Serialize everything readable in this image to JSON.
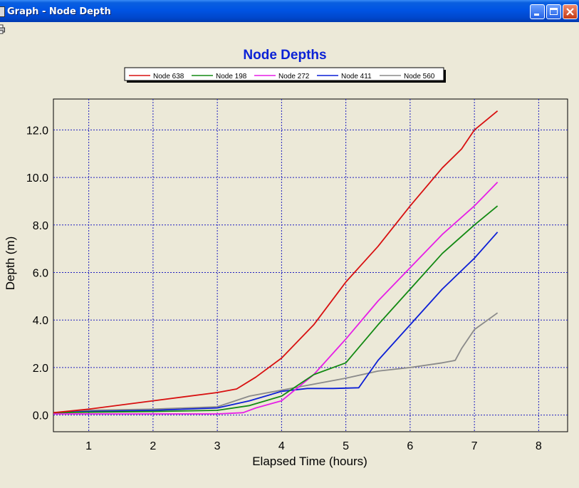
{
  "window": {
    "title": "Graph - Node Depth",
    "buttons": [
      "minimize",
      "maximize",
      "close"
    ],
    "icons": [
      "graph-app-icon",
      "print-icon"
    ]
  },
  "chart_data": {
    "type": "line",
    "title": "Node Depths",
    "xlabel": "Elapsed Time (hours)",
    "ylabel": "Depth (m)",
    "xlim": [
      0.45,
      8.45
    ],
    "ylim": [
      -0.7,
      13.3
    ],
    "x_ticks": [
      1,
      2,
      3,
      4,
      5,
      6,
      7,
      8
    ],
    "y_ticks": [
      0,
      2,
      4,
      6,
      8,
      10,
      12
    ],
    "y_tick_labels": [
      "0.0",
      "2.0",
      "4.0",
      "6.0",
      "8.0",
      "10.0",
      "12.0"
    ],
    "grid": true,
    "legend_position": "top",
    "colors": {
      "title": "#0b22d6",
      "grid": "#1f1fbf",
      "background": "#ece9d8"
    },
    "series": [
      {
        "name": "Node 638",
        "color": "#d81010",
        "x": [
          0.45,
          1,
          2,
          3,
          3.3,
          3.6,
          4,
          4.5,
          5,
          5.5,
          6,
          6.5,
          6.8,
          7,
          7.36
        ],
        "y": [
          0.1,
          0.25,
          0.6,
          0.95,
          1.1,
          1.6,
          2.4,
          3.8,
          5.6,
          7.1,
          8.8,
          10.4,
          11.2,
          12.0,
          12.8
        ]
      },
      {
        "name": "Node 198",
        "color": "#138a13",
        "x": [
          0.45,
          1,
          2,
          3,
          3.5,
          4,
          4.5,
          5,
          5.5,
          6,
          6.5,
          7,
          7.36
        ],
        "y": [
          0.1,
          0.12,
          0.15,
          0.2,
          0.4,
          0.8,
          1.7,
          2.2,
          3.8,
          5.3,
          6.8,
          8.0,
          8.8
        ]
      },
      {
        "name": "Node 272",
        "color": "#e61ee6",
        "x": [
          0.45,
          1,
          2,
          3,
          3.4,
          3.6,
          4,
          4.5,
          5,
          5.5,
          6,
          6.5,
          7,
          7.36
        ],
        "y": [
          0.05,
          0.05,
          0.05,
          0.05,
          0.1,
          0.3,
          0.6,
          1.7,
          3.2,
          4.8,
          6.2,
          7.6,
          8.8,
          9.8
        ]
      },
      {
        "name": "Node 411",
        "color": "#0c1fd6",
        "x": [
          0.45,
          1,
          2,
          3,
          3.5,
          4,
          4.4,
          4.8,
          5.2,
          5.5,
          6,
          6.5,
          7,
          7.36
        ],
        "y": [
          0.1,
          0.15,
          0.2,
          0.3,
          0.6,
          1.0,
          1.12,
          1.12,
          1.15,
          2.3,
          3.8,
          5.3,
          6.6,
          7.7
        ]
      },
      {
        "name": "Node 560",
        "color": "#8a8a8a",
        "x": [
          0.45,
          1,
          2,
          3,
          3.5,
          4,
          4.5,
          5,
          5.5,
          6,
          6.5,
          6.7,
          6.8,
          7,
          7.36
        ],
        "y": [
          0.1,
          0.2,
          0.25,
          0.35,
          0.8,
          1.05,
          1.3,
          1.55,
          1.85,
          2.0,
          2.2,
          2.3,
          2.8,
          3.6,
          4.3
        ]
      }
    ]
  }
}
